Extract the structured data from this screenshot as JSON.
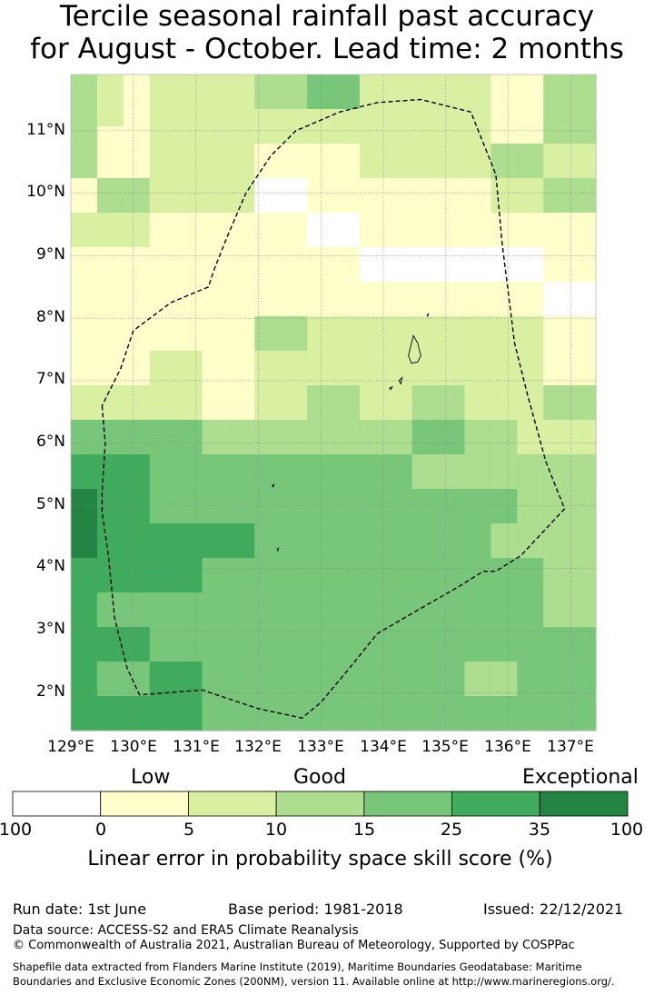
{
  "title": {
    "line1": "Tercile seasonal rainfall past accuracy",
    "line2": "for August - October. Lead time: 2 months"
  },
  "map": {
    "lat_labels": [
      "11°N",
      "10°N",
      "9°N",
      "8°N",
      "7°N",
      "6°N",
      "5°N",
      "4°N",
      "3°N",
      "2°N"
    ],
    "lon_labels": [
      "129°E",
      "130°E",
      "131°E",
      "132°E",
      "133°E",
      "134°E",
      "135°E",
      "136°E",
      "137°E"
    ],
    "lat_range": [
      1.4,
      11.9
    ],
    "lon_range": [
      129.0,
      137.4
    ],
    "grid_spacing_deg": 0.5,
    "cells_note": "rows north to south; values are colorbar class index 0-6",
    "cells": [
      [
        3,
        2,
        1,
        2,
        2,
        2,
        2,
        3,
        3,
        4,
        4,
        2,
        2,
        2,
        2,
        2,
        1,
        1,
        3,
        3
      ],
      [
        3,
        2,
        1,
        2,
        2,
        2,
        2,
        3,
        3,
        4,
        4,
        2,
        2,
        2,
        2,
        2,
        1,
        1,
        3,
        3
      ],
      [
        3,
        2,
        1,
        2,
        2,
        2,
        2,
        2,
        2,
        2,
        2,
        2,
        2,
        2,
        2,
        2,
        1,
        1,
        3,
        3
      ],
      [
        3,
        1,
        1,
        2,
        2,
        2,
        2,
        2,
        2,
        2,
        2,
        2,
        2,
        2,
        2,
        2,
        1,
        1,
        3,
        3
      ],
      [
        3,
        1,
        1,
        2,
        2,
        2,
        2,
        1,
        1,
        1,
        1,
        2,
        2,
        2,
        2,
        2,
        3,
        3,
        2,
        2
      ],
      [
        3,
        1,
        1,
        2,
        2,
        2,
        2,
        1,
        1,
        1,
        1,
        2,
        2,
        2,
        2,
        2,
        3,
        3,
        2,
        2
      ],
      [
        1,
        3,
        3,
        2,
        2,
        2,
        2,
        0,
        0,
        1,
        1,
        1,
        1,
        1,
        1,
        1,
        2,
        2,
        3,
        3
      ],
      [
        1,
        3,
        3,
        2,
        2,
        2,
        2,
        0,
        0,
        1,
        1,
        1,
        1,
        1,
        1,
        1,
        2,
        2,
        3,
        3
      ],
      [
        2,
        2,
        2,
        1,
        1,
        1,
        1,
        1,
        1,
        0,
        0,
        1,
        1,
        1,
        1,
        1,
        1,
        1,
        1,
        1
      ],
      [
        2,
        2,
        2,
        1,
        1,
        1,
        1,
        1,
        1,
        0,
        0,
        1,
        1,
        1,
        1,
        1,
        1,
        1,
        1,
        1
      ],
      [
        1,
        1,
        1,
        1,
        1,
        1,
        1,
        1,
        1,
        1,
        1,
        0,
        0,
        0,
        0,
        0,
        0,
        0,
        1,
        1
      ],
      [
        1,
        1,
        1,
        1,
        1,
        1,
        1,
        1,
        1,
        1,
        1,
        0,
        0,
        0,
        0,
        0,
        0,
        0,
        1,
        1
      ],
      [
        1,
        1,
        1,
        1,
        1,
        1,
        1,
        1,
        1,
        1,
        1,
        1,
        1,
        1,
        1,
        1,
        1,
        1,
        0,
        0
      ],
      [
        1,
        1,
        1,
        1,
        1,
        1,
        1,
        1,
        1,
        1,
        1,
        1,
        1,
        1,
        1,
        1,
        1,
        1,
        0,
        0
      ],
      [
        1,
        1,
        1,
        1,
        1,
        1,
        1,
        3,
        3,
        2,
        2,
        2,
        2,
        2,
        2,
        2,
        2,
        2,
        1,
        1
      ],
      [
        1,
        1,
        1,
        1,
        1,
        1,
        1,
        3,
        3,
        2,
        2,
        2,
        2,
        2,
        2,
        2,
        2,
        2,
        1,
        1
      ],
      [
        1,
        1,
        1,
        2,
        2,
        1,
        1,
        2,
        2,
        2,
        2,
        2,
        2,
        2,
        2,
        2,
        2,
        2,
        1,
        1
      ],
      [
        1,
        1,
        1,
        2,
        2,
        1,
        1,
        2,
        2,
        2,
        2,
        2,
        2,
        2,
        2,
        2,
        2,
        2,
        1,
        1
      ],
      [
        2,
        2,
        2,
        2,
        2,
        1,
        1,
        2,
        2,
        3,
        3,
        2,
        2,
        3,
        3,
        2,
        2,
        2,
        3,
        3
      ],
      [
        2,
        2,
        2,
        2,
        2,
        1,
        1,
        2,
        2,
        3,
        3,
        2,
        2,
        3,
        3,
        2,
        2,
        2,
        3,
        3
      ],
      [
        4,
        4,
        4,
        4,
        4,
        3,
        3,
        3,
        3,
        3,
        3,
        3,
        3,
        4,
        4,
        3,
        3,
        2,
        2,
        2
      ],
      [
        4,
        4,
        4,
        4,
        4,
        3,
        3,
        3,
        3,
        3,
        3,
        3,
        3,
        4,
        4,
        3,
        3,
        2,
        2,
        2
      ],
      [
        5,
        5,
        5,
        4,
        4,
        4,
        4,
        4,
        4,
        4,
        4,
        4,
        4,
        3,
        3,
        3,
        3,
        3,
        3,
        3
      ],
      [
        5,
        5,
        5,
        4,
        4,
        4,
        4,
        4,
        4,
        4,
        4,
        4,
        4,
        3,
        3,
        3,
        3,
        3,
        3,
        3
      ],
      [
        6,
        5,
        5,
        4,
        4,
        4,
        4,
        4,
        4,
        4,
        4,
        4,
        4,
        4,
        4,
        4,
        4,
        3,
        3,
        3
      ],
      [
        6,
        5,
        5,
        4,
        4,
        4,
        4,
        4,
        4,
        4,
        4,
        4,
        4,
        4,
        4,
        4,
        4,
        3,
        3,
        3
      ],
      [
        6,
        5,
        5,
        5,
        5,
        5,
        5,
        4,
        4,
        4,
        4,
        4,
        4,
        4,
        4,
        4,
        3,
        3,
        3,
        3
      ],
      [
        6,
        5,
        5,
        5,
        5,
        5,
        5,
        4,
        4,
        4,
        4,
        4,
        4,
        4,
        4,
        4,
        3,
        3,
        3,
        3
      ],
      [
        5,
        5,
        5,
        5,
        5,
        4,
        4,
        4,
        4,
        4,
        4,
        4,
        4,
        4,
        4,
        4,
        4,
        4,
        3,
        3
      ],
      [
        5,
        5,
        5,
        5,
        5,
        4,
        4,
        4,
        4,
        4,
        4,
        4,
        4,
        4,
        4,
        4,
        4,
        4,
        3,
        3
      ],
      [
        5,
        4,
        4,
        4,
        4,
        4,
        4,
        4,
        4,
        4,
        4,
        4,
        4,
        4,
        4,
        4,
        4,
        4,
        3,
        3
      ],
      [
        5,
        4,
        4,
        4,
        4,
        4,
        4,
        4,
        4,
        4,
        4,
        4,
        4,
        4,
        4,
        4,
        4,
        4,
        3,
        3
      ],
      [
        5,
        5,
        5,
        4,
        4,
        4,
        4,
        4,
        4,
        4,
        4,
        4,
        4,
        4,
        4,
        4,
        4,
        4,
        4,
        4
      ],
      [
        5,
        5,
        5,
        4,
        4,
        4,
        4,
        4,
        4,
        4,
        4,
        4,
        4,
        4,
        4,
        4,
        4,
        4,
        4,
        4
      ],
      [
        5,
        4,
        4,
        5,
        5,
        4,
        4,
        4,
        4,
        4,
        4,
        4,
        4,
        4,
        4,
        3,
        3,
        4,
        4,
        4
      ],
      [
        5,
        4,
        4,
        5,
        5,
        4,
        4,
        4,
        4,
        4,
        4,
        4,
        4,
        4,
        4,
        3,
        3,
        4,
        4,
        4
      ],
      [
        5,
        5,
        5,
        5,
        5,
        4,
        4,
        4,
        4,
        4,
        4,
        4,
        4,
        4,
        4,
        4,
        4,
        4,
        4,
        4
      ],
      [
        5,
        5,
        5,
        5,
        5,
        4,
        4,
        4,
        4,
        4,
        4,
        4,
        4,
        4,
        4,
        4,
        4,
        4,
        4,
        4
      ]
    ],
    "eez_boundary_lonlat": [
      [
        129.5,
        6.6
      ],
      [
        129.55,
        6.0
      ],
      [
        129.5,
        5.2
      ],
      [
        129.5,
        4.9
      ],
      [
        129.6,
        4.2
      ],
      [
        129.7,
        3.2
      ],
      [
        129.9,
        2.4
      ],
      [
        130.1,
        1.97
      ],
      [
        131.1,
        2.05
      ],
      [
        132.0,
        1.75
      ],
      [
        132.7,
        1.6
      ],
      [
        133.0,
        1.85
      ],
      [
        133.5,
        2.45
      ],
      [
        133.9,
        2.95
      ],
      [
        134.5,
        3.3
      ],
      [
        135.2,
        3.7
      ],
      [
        135.6,
        3.95
      ],
      [
        135.8,
        3.95
      ],
      [
        136.2,
        4.2
      ],
      [
        136.9,
        4.95
      ],
      [
        136.6,
        5.7
      ],
      [
        136.3,
        6.8
      ],
      [
        136.1,
        7.6
      ],
      [
        135.9,
        9.2
      ],
      [
        135.8,
        10.3
      ],
      [
        135.6,
        10.8
      ],
      [
        135.4,
        11.3
      ],
      [
        134.6,
        11.5
      ],
      [
        133.9,
        11.45
      ],
      [
        133.3,
        11.3
      ],
      [
        132.6,
        11.0
      ],
      [
        132.2,
        10.6
      ],
      [
        131.8,
        10.0
      ],
      [
        131.5,
        9.3
      ],
      [
        131.3,
        8.8
      ],
      [
        131.2,
        8.5
      ],
      [
        130.6,
        8.25
      ],
      [
        130.0,
        7.8
      ],
      [
        129.8,
        7.2
      ],
      [
        129.5,
        6.6
      ]
    ],
    "islands_lonlat": [
      [
        [
          134.48,
          7.72
        ],
        [
          134.55,
          7.6
        ],
        [
          134.6,
          7.4
        ],
        [
          134.55,
          7.3
        ],
        [
          134.45,
          7.28
        ],
        [
          134.4,
          7.4
        ],
        [
          134.48,
          7.72
        ]
      ],
      [
        [
          134.25,
          7.0
        ],
        [
          134.3,
          7.05
        ],
        [
          134.28,
          6.95
        ],
        [
          134.25,
          7.0
        ]
      ],
      [
        [
          134.1,
          6.88
        ],
        [
          134.14,
          6.9
        ],
        [
          134.12,
          6.86
        ],
        [
          134.1,
          6.88
        ]
      ],
      [
        [
          132.22,
          5.32
        ],
        [
          132.25,
          5.34
        ],
        [
          132.24,
          5.3
        ],
        [
          132.22,
          5.32
        ]
      ],
      [
        [
          132.3,
          4.3
        ],
        [
          132.32,
          4.32
        ],
        [
          132.31,
          4.28
        ],
        [
          132.3,
          4.3
        ]
      ],
      [
        [
          134.7,
          8.05
        ],
        [
          134.72,
          8.07
        ],
        [
          134.71,
          8.03
        ],
        [
          134.7,
          8.05
        ]
      ]
    ]
  },
  "colorbar": {
    "colors": [
      "#ffffff",
      "#ffffcc",
      "#d9f0a3",
      "#addd8e",
      "#78c679",
      "#41ab5d",
      "#238443"
    ],
    "edge_labels": [
      "100",
      "0",
      "5",
      "10",
      "15",
      "25",
      "35",
      "100"
    ],
    "category_labels": {
      "low": "Low",
      "good": "Good",
      "exceptional": "Exceptional"
    },
    "title": "Linear error in probability space skill score (%)"
  },
  "footer": {
    "run_date": "Run date: 1st June",
    "base_period": "Base period: 1981-2018",
    "issued": "Issued: 22/12/2021",
    "data_source": "Data source: ACCESS-S2 and ERA5 Climate Reanalysis",
    "copyright": "© Commonwealth of Australia 2021, Australian Bureau of Meteorology, Supported by COSPPac",
    "shapefile_line1": "Shapefile data extracted from Flanders Marine Institute (2019), Maritime Boundaries Geodatabase: Maritime",
    "shapefile_line2": "Boundaries and Exclusive Economic Zones (200NM), version 11. Available online at http://www.marineregions.org/."
  }
}
